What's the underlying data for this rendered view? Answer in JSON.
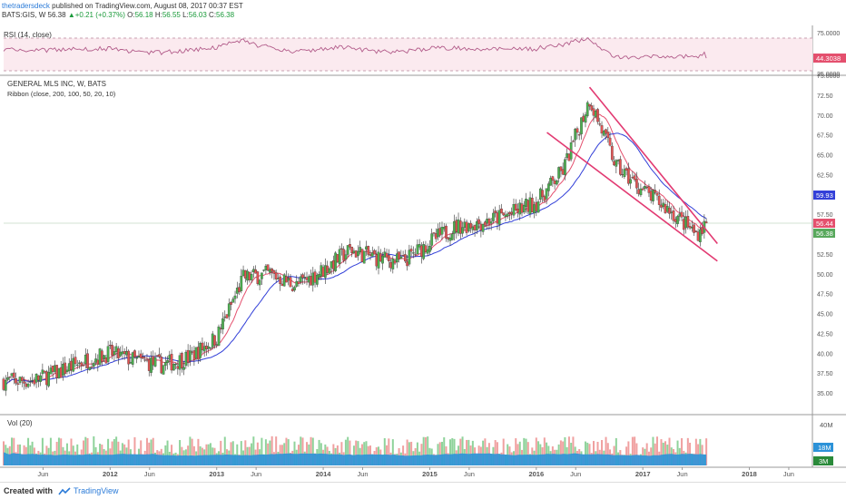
{
  "header": {
    "author": "thetradersdeck",
    "published": "published on TradingView.com, August 08, 2017 00:37 EST",
    "symbol_line": "BATS:GIS, W",
    "last": "56.38",
    "change": "+0.21 (+0.37%)",
    "o_label": "O:",
    "o": "56.18",
    "h_label": "H:",
    "h": "56.55",
    "l_label": "L:",
    "l": "56.03",
    "c_label": "C:",
    "c": "56.38"
  },
  "rsi": {
    "title": "RSI (14, close)",
    "upper_label": "75.0000",
    "lower_label": "25.0000",
    "current": "44.3038"
  },
  "price": {
    "title": "GENERAL MLS INC, W, BATS",
    "ribbon": "Ribbon (close, 200, 100, 50, 20, 10)",
    "badge_blue": "59.93",
    "badge_red": "56.44",
    "badge_green": "56.38"
  },
  "volume": {
    "title": "Vol (20)",
    "axis_40m": "40M",
    "badge_18m": "18M",
    "badge_3m": "3M"
  },
  "colors": {
    "up": "#4caf50",
    "down": "#e25353",
    "ma_red": "#e4506e",
    "ma_blue": "#3340d8",
    "channel": "#e23a72",
    "rsi": "#b25c8a",
    "vol_area": "#2c92d8"
  },
  "footer": {
    "created": "Created with",
    "brand": "TradingView"
  },
  "chart_data": {
    "type": "candlestick",
    "symbol": "BATS:GIS",
    "interval": "W",
    "price_axis": [
      35.0,
      37.5,
      40.0,
      42.5,
      45.0,
      47.5,
      50.0,
      52.5,
      55.0,
      57.5,
      60.0,
      62.5,
      65.0,
      67.5,
      70.0,
      72.5,
      75.0
    ],
    "time_axis": [
      "Jun",
      "2012",
      "Jun",
      "2013",
      "Jun",
      "2014",
      "Jun",
      "2015",
      "Jun",
      "2016",
      "Jun",
      "2017",
      "Jun",
      "2018",
      "Jun"
    ],
    "close_trend": [
      {
        "t": 2011.25,
        "close": 36.5
      },
      {
        "t": 2011.5,
        "close": 37.5
      },
      {
        "t": 2011.75,
        "close": 39.0
      },
      {
        "t": 2012.0,
        "close": 40.0
      },
      {
        "t": 2012.25,
        "close": 39.0
      },
      {
        "t": 2012.5,
        "close": 38.5
      },
      {
        "t": 2012.75,
        "close": 39.5
      },
      {
        "t": 2013.0,
        "close": 42.0
      },
      {
        "t": 2013.25,
        "close": 49.5
      },
      {
        "t": 2013.5,
        "close": 50.0
      },
      {
        "t": 2013.75,
        "close": 48.5
      },
      {
        "t": 2014.0,
        "close": 50.5
      },
      {
        "t": 2014.25,
        "close": 53.0
      },
      {
        "t": 2014.5,
        "close": 52.0
      },
      {
        "t": 2014.75,
        "close": 51.5
      },
      {
        "t": 2015.0,
        "close": 54.0
      },
      {
        "t": 2015.25,
        "close": 56.0
      },
      {
        "t": 2015.5,
        "close": 56.5
      },
      {
        "t": 2015.75,
        "close": 57.5
      },
      {
        "t": 2016.0,
        "close": 59.0
      },
      {
        "t": 2016.25,
        "close": 63.0
      },
      {
        "t": 2016.5,
        "close": 72.0
      },
      {
        "t": 2016.75,
        "close": 63.5
      },
      {
        "t": 2017.0,
        "close": 60.5
      },
      {
        "t": 2017.25,
        "close": 58.0
      },
      {
        "t": 2017.5,
        "close": 55.0
      },
      {
        "t": 2017.6,
        "close": 56.38
      }
    ],
    "channel_lines": [
      {
        "name": "upper",
        "from": {
          "t": 2016.5,
          "price": 73.5
        },
        "to": {
          "t": 2017.7,
          "price": 53.8
        }
      },
      {
        "name": "lower",
        "from": {
          "t": 2016.1,
          "price": 67.8
        },
        "to": {
          "t": 2017.7,
          "price": 51.6
        }
      }
    ],
    "rsi_levels": [
      75,
      25
    ],
    "rsi_last": 44.3038,
    "last_close": 56.38
  }
}
